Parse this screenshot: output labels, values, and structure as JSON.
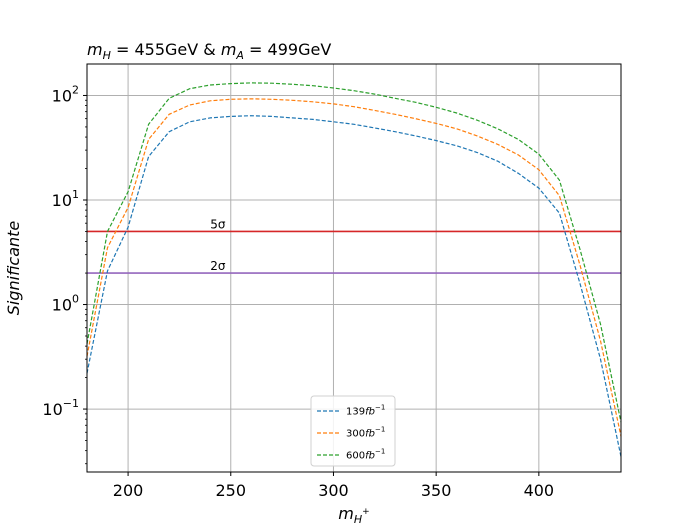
{
  "chart_data": {
    "type": "line",
    "title": "m_H = 455GeV & m_A = 499GeV",
    "title_parts": {
      "m": "m",
      "h_sub": "H",
      "eq1": " = 455GeV & ",
      "a_sub": "A",
      "eq2": " = 499GeV"
    },
    "xlabel": "m_{H^+}",
    "xlabel_parts": {
      "m": "m",
      "sub": "H",
      "sup": "+"
    },
    "ylabel": "Significante",
    "xlim": [
      180,
      440
    ],
    "ylim": [
      0.025,
      200
    ],
    "yscale": "log",
    "grid": true,
    "legend_position": "lower-center",
    "x_ticks": [
      "200",
      "250",
      "300",
      "350",
      "400"
    ],
    "y_ticks": [
      {
        "base": "10",
        "exp": "-1",
        "value": 0.1
      },
      {
        "base": "10",
        "exp": "0",
        "value": 1
      },
      {
        "base": "10",
        "exp": "1",
        "value": 10
      },
      {
        "base": "10",
        "exp": "2",
        "value": 100
      }
    ],
    "x": [
      180,
      190,
      200,
      210,
      220,
      230,
      240,
      250,
      260,
      270,
      280,
      290,
      300,
      310,
      320,
      330,
      340,
      350,
      360,
      370,
      380,
      390,
      400,
      410,
      420,
      430,
      440
    ],
    "series": [
      {
        "name": "139fb^-1",
        "label_base": "139",
        "label_unit": "fb",
        "label_exp": "−1",
        "color": "#1f77b4",
        "values": [
          0.22,
          2.1,
          5.5,
          26,
          45,
          56,
          61,
          63,
          64,
          63,
          61,
          59,
          56,
          53,
          49,
          45,
          41,
          37,
          33,
          28.5,
          23.5,
          18,
          13,
          7.5,
          1.6,
          0.3,
          0.035
        ]
      },
      {
        "name": "300fb^-1",
        "label_base": "300",
        "label_unit": "fb",
        "label_exp": "−1",
        "color": "#ff7f0e",
        "values": [
          0.32,
          3.5,
          8.5,
          38,
          66,
          81,
          89,
          92,
          93,
          92,
          90,
          87,
          83,
          78,
          72,
          66,
          60,
          54,
          48,
          41,
          34,
          27,
          19.5,
          11,
          2.4,
          0.45,
          0.055
        ]
      },
      {
        "name": "600fb^-1",
        "label_base": "600",
        "label_unit": "fb",
        "label_exp": "−1",
        "color": "#2ca02c",
        "values": [
          0.42,
          5,
          12,
          53,
          94,
          116,
          126,
          130,
          132,
          131,
          128,
          124,
          118,
          111,
          103,
          94,
          86,
          77,
          68,
          58,
          48,
          38,
          27.5,
          15.5,
          3.4,
          0.65,
          0.075
        ]
      }
    ],
    "reference_lines": [
      {
        "name": "5sigma",
        "label": "5σ",
        "value": 5,
        "color": "#d62728",
        "label_x": 240
      },
      {
        "name": "2sigma",
        "label": "2σ",
        "value": 2,
        "color": "#9467bd",
        "label_x": 240
      }
    ]
  }
}
